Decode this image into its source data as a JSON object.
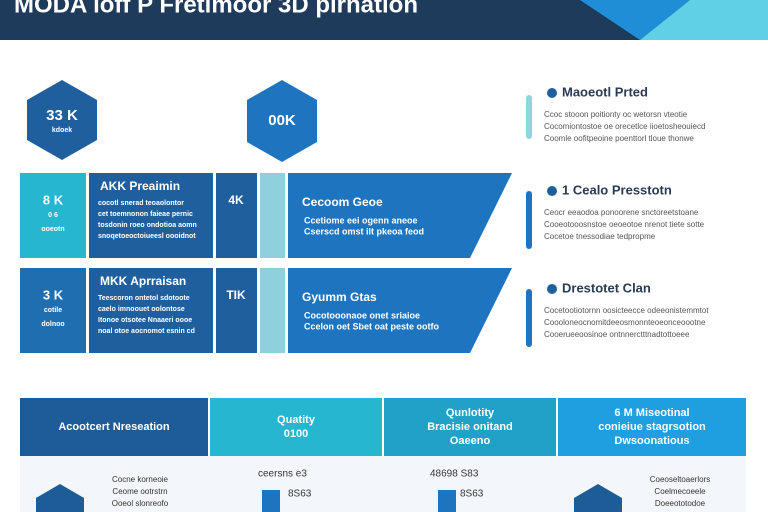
{
  "header": {
    "title": "MODA loff P Fretimoor 3D pirnation"
  },
  "hexagons": [
    {
      "value": "33 K",
      "caption": "kdoek"
    },
    {
      "value": "00K"
    }
  ],
  "rows": [
    {
      "left": [
        "8 K",
        "0 6",
        "ooeotn"
      ],
      "title": "AKK Preaimin",
      "lines": [
        "cocotl snerad teoaolontor",
        "cet toemnonon faieae pernic",
        "tosdonin roeo ondotioa aomn",
        "snoqetoeoctoiueesl oooidnot"
      ],
      "small": "4K",
      "panel": "Cecoom Geoe",
      "panel_lines": [
        "Ccetiome eei ogenn aneoe",
        "Cserscd omst ilt pkeoa feod"
      ]
    },
    {
      "left": [
        "3 K",
        "cotile",
        "dolnoo"
      ],
      "title": "MKK Aprraisan",
      "lines": [
        "Teescoron ontetol sdotoote",
        "caelo imnoouet oolontose",
        "Itonoe otsotee Nnaaeri oooe",
        "noal otoe aocnomot esnin cd"
      ],
      "small": "TIK",
      "panel": "Gyumm Gtas",
      "panel_lines": [
        "Cocotooonaoe onet sriaioe",
        "Ccelon oet Sbet oat peste ootfo"
      ]
    }
  ],
  "side": [
    {
      "title": "Maoeotl Prted",
      "lines": [
        "Ccoc stooon poitionty oc wetorsn vteotie",
        "Cocomiontostoe oe orecetlce iioetosheouiecd",
        "Coomle oofitpeoine poenttorl tloue thonwe"
      ]
    },
    {
      "title": "1 Cealo Presstotn",
      "lines": [
        "Ceocr eeaodoa ponoorene snctoreetstoane",
        "Cooeotooosnstoe oeoeotoe nrenot tiete sotte",
        "Cocetoe tnessodiae tedpropme"
      ]
    },
    {
      "title": "Drestotet Clan",
      "lines": [
        "Cocetootiotornn oosicteecce odeeonistemmtot",
        "Coooloneocnomitdeeosmonnteoeonceoootne",
        "Cooerueeoosinoe ontnnerctttnadtottoeee"
      ]
    }
  ],
  "table": {
    "headers": [
      [
        "Acootcert Nreseation"
      ],
      [
        "Quatity",
        "0100"
      ],
      [
        "Qunlotity",
        "Bracisie onitand",
        "Oaeeno"
      ],
      [
        "6 M Miseotinal",
        "conieiue stagrsotion",
        "Dwsoonatious"
      ]
    ],
    "cells": [
      [
        "Cocne korneoie",
        "Ceome ootrstrn",
        "Ooeol slonreofo"
      ],
      [
        "ceersns e3",
        "8S63"
      ],
      [
        "48698 S83",
        "8S63"
      ],
      [
        "Coeoseltoaerlors",
        "Coelmecoeele",
        "Doeeototodoe"
      ]
    ]
  }
}
